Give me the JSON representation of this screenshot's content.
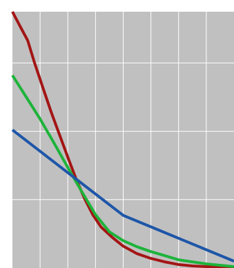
{
  "chart_data": {
    "type": "line",
    "title": "",
    "xlabel": "",
    "ylabel": "",
    "xlim": [
      0,
      8
    ],
    "ylim": [
      0,
      3.75
    ],
    "grid": true,
    "legend": "none",
    "colors": {
      "background": "#c0c0c0",
      "grid": "#ffffff"
    },
    "series": [
      {
        "color": "#a31515",
        "x": [
          0,
          0.3,
          0.55,
          0.8,
          1.1,
          1.4,
          1.7,
          2.0,
          2.3,
          2.6,
          2.9,
          3.2,
          3.6,
          4.0,
          4.5,
          5.0,
          5.5,
          6.0,
          6.5,
          7.0,
          7.5,
          8.0
        ],
        "y": [
          3.75,
          3.52,
          3.33,
          3.0,
          2.64,
          2.28,
          1.95,
          1.62,
          1.3,
          1.02,
          0.78,
          0.6,
          0.45,
          0.32,
          0.21,
          0.14,
          0.09,
          0.05,
          0.03,
          0.02,
          0.01,
          0.0
        ]
      },
      {
        "color": "#1db33a",
        "x": [
          0,
          0.5,
          1.0,
          1.5,
          2.0,
          2.5,
          3.0,
          3.5,
          4.0,
          4.5,
          5.0,
          5.5,
          6.0,
          6.5,
          7.0,
          7.5,
          8.0
        ],
        "y": [
          2.82,
          2.5,
          2.18,
          1.83,
          1.47,
          1.12,
          0.78,
          0.53,
          0.4,
          0.31,
          0.24,
          0.18,
          0.12,
          0.09,
          0.06,
          0.04,
          0.02
        ]
      },
      {
        "color": "#1e56a8",
        "x": [
          0,
          4.0,
          8.0
        ],
        "y": [
          2.02,
          0.77,
          0.1
        ]
      }
    ]
  }
}
